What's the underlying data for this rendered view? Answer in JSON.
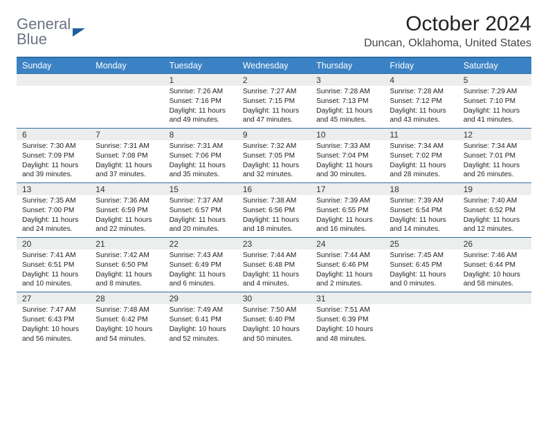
{
  "logo": {
    "line1": "General",
    "line2": "Blue"
  },
  "title": "October 2024",
  "location": "Duncan, Oklahoma, United States",
  "day_names": [
    "Sunday",
    "Monday",
    "Tuesday",
    "Wednesday",
    "Thursday",
    "Friday",
    "Saturday"
  ],
  "colors": {
    "header_bg": "#3b82c4",
    "border": "#2d6ca2",
    "daynum_bg": "#eceded",
    "logo_gray": "#6b7280",
    "logo_blue": "#3b82c4"
  },
  "weeks": [
    [
      {
        "n": "",
        "sr": "",
        "ss": "",
        "dl": ""
      },
      {
        "n": "",
        "sr": "",
        "ss": "",
        "dl": ""
      },
      {
        "n": "1",
        "sr": "Sunrise: 7:26 AM",
        "ss": "Sunset: 7:16 PM",
        "dl": "Daylight: 11 hours and 49 minutes."
      },
      {
        "n": "2",
        "sr": "Sunrise: 7:27 AM",
        "ss": "Sunset: 7:15 PM",
        "dl": "Daylight: 11 hours and 47 minutes."
      },
      {
        "n": "3",
        "sr": "Sunrise: 7:28 AM",
        "ss": "Sunset: 7:13 PM",
        "dl": "Daylight: 11 hours and 45 minutes."
      },
      {
        "n": "4",
        "sr": "Sunrise: 7:28 AM",
        "ss": "Sunset: 7:12 PM",
        "dl": "Daylight: 11 hours and 43 minutes."
      },
      {
        "n": "5",
        "sr": "Sunrise: 7:29 AM",
        "ss": "Sunset: 7:10 PM",
        "dl": "Daylight: 11 hours and 41 minutes."
      }
    ],
    [
      {
        "n": "6",
        "sr": "Sunrise: 7:30 AM",
        "ss": "Sunset: 7:09 PM",
        "dl": "Daylight: 11 hours and 39 minutes."
      },
      {
        "n": "7",
        "sr": "Sunrise: 7:31 AM",
        "ss": "Sunset: 7:08 PM",
        "dl": "Daylight: 11 hours and 37 minutes."
      },
      {
        "n": "8",
        "sr": "Sunrise: 7:31 AM",
        "ss": "Sunset: 7:06 PM",
        "dl": "Daylight: 11 hours and 35 minutes."
      },
      {
        "n": "9",
        "sr": "Sunrise: 7:32 AM",
        "ss": "Sunset: 7:05 PM",
        "dl": "Daylight: 11 hours and 32 minutes."
      },
      {
        "n": "10",
        "sr": "Sunrise: 7:33 AM",
        "ss": "Sunset: 7:04 PM",
        "dl": "Daylight: 11 hours and 30 minutes."
      },
      {
        "n": "11",
        "sr": "Sunrise: 7:34 AM",
        "ss": "Sunset: 7:02 PM",
        "dl": "Daylight: 11 hours and 28 minutes."
      },
      {
        "n": "12",
        "sr": "Sunrise: 7:34 AM",
        "ss": "Sunset: 7:01 PM",
        "dl": "Daylight: 11 hours and 26 minutes."
      }
    ],
    [
      {
        "n": "13",
        "sr": "Sunrise: 7:35 AM",
        "ss": "Sunset: 7:00 PM",
        "dl": "Daylight: 11 hours and 24 minutes."
      },
      {
        "n": "14",
        "sr": "Sunrise: 7:36 AM",
        "ss": "Sunset: 6:59 PM",
        "dl": "Daylight: 11 hours and 22 minutes."
      },
      {
        "n": "15",
        "sr": "Sunrise: 7:37 AM",
        "ss": "Sunset: 6:57 PM",
        "dl": "Daylight: 11 hours and 20 minutes."
      },
      {
        "n": "16",
        "sr": "Sunrise: 7:38 AM",
        "ss": "Sunset: 6:56 PM",
        "dl": "Daylight: 11 hours and 18 minutes."
      },
      {
        "n": "17",
        "sr": "Sunrise: 7:39 AM",
        "ss": "Sunset: 6:55 PM",
        "dl": "Daylight: 11 hours and 16 minutes."
      },
      {
        "n": "18",
        "sr": "Sunrise: 7:39 AM",
        "ss": "Sunset: 6:54 PM",
        "dl": "Daylight: 11 hours and 14 minutes."
      },
      {
        "n": "19",
        "sr": "Sunrise: 7:40 AM",
        "ss": "Sunset: 6:52 PM",
        "dl": "Daylight: 11 hours and 12 minutes."
      }
    ],
    [
      {
        "n": "20",
        "sr": "Sunrise: 7:41 AM",
        "ss": "Sunset: 6:51 PM",
        "dl": "Daylight: 11 hours and 10 minutes."
      },
      {
        "n": "21",
        "sr": "Sunrise: 7:42 AM",
        "ss": "Sunset: 6:50 PM",
        "dl": "Daylight: 11 hours and 8 minutes."
      },
      {
        "n": "22",
        "sr": "Sunrise: 7:43 AM",
        "ss": "Sunset: 6:49 PM",
        "dl": "Daylight: 11 hours and 6 minutes."
      },
      {
        "n": "23",
        "sr": "Sunrise: 7:44 AM",
        "ss": "Sunset: 6:48 PM",
        "dl": "Daylight: 11 hours and 4 minutes."
      },
      {
        "n": "24",
        "sr": "Sunrise: 7:44 AM",
        "ss": "Sunset: 6:46 PM",
        "dl": "Daylight: 11 hours and 2 minutes."
      },
      {
        "n": "25",
        "sr": "Sunrise: 7:45 AM",
        "ss": "Sunset: 6:45 PM",
        "dl": "Daylight: 11 hours and 0 minutes."
      },
      {
        "n": "26",
        "sr": "Sunrise: 7:46 AM",
        "ss": "Sunset: 6:44 PM",
        "dl": "Daylight: 10 hours and 58 minutes."
      }
    ],
    [
      {
        "n": "27",
        "sr": "Sunrise: 7:47 AM",
        "ss": "Sunset: 6:43 PM",
        "dl": "Daylight: 10 hours and 56 minutes."
      },
      {
        "n": "28",
        "sr": "Sunrise: 7:48 AM",
        "ss": "Sunset: 6:42 PM",
        "dl": "Daylight: 10 hours and 54 minutes."
      },
      {
        "n": "29",
        "sr": "Sunrise: 7:49 AM",
        "ss": "Sunset: 6:41 PM",
        "dl": "Daylight: 10 hours and 52 minutes."
      },
      {
        "n": "30",
        "sr": "Sunrise: 7:50 AM",
        "ss": "Sunset: 6:40 PM",
        "dl": "Daylight: 10 hours and 50 minutes."
      },
      {
        "n": "31",
        "sr": "Sunrise: 7:51 AM",
        "ss": "Sunset: 6:39 PM",
        "dl": "Daylight: 10 hours and 48 minutes."
      },
      {
        "n": "",
        "sr": "",
        "ss": "",
        "dl": ""
      },
      {
        "n": "",
        "sr": "",
        "ss": "",
        "dl": ""
      }
    ]
  ]
}
